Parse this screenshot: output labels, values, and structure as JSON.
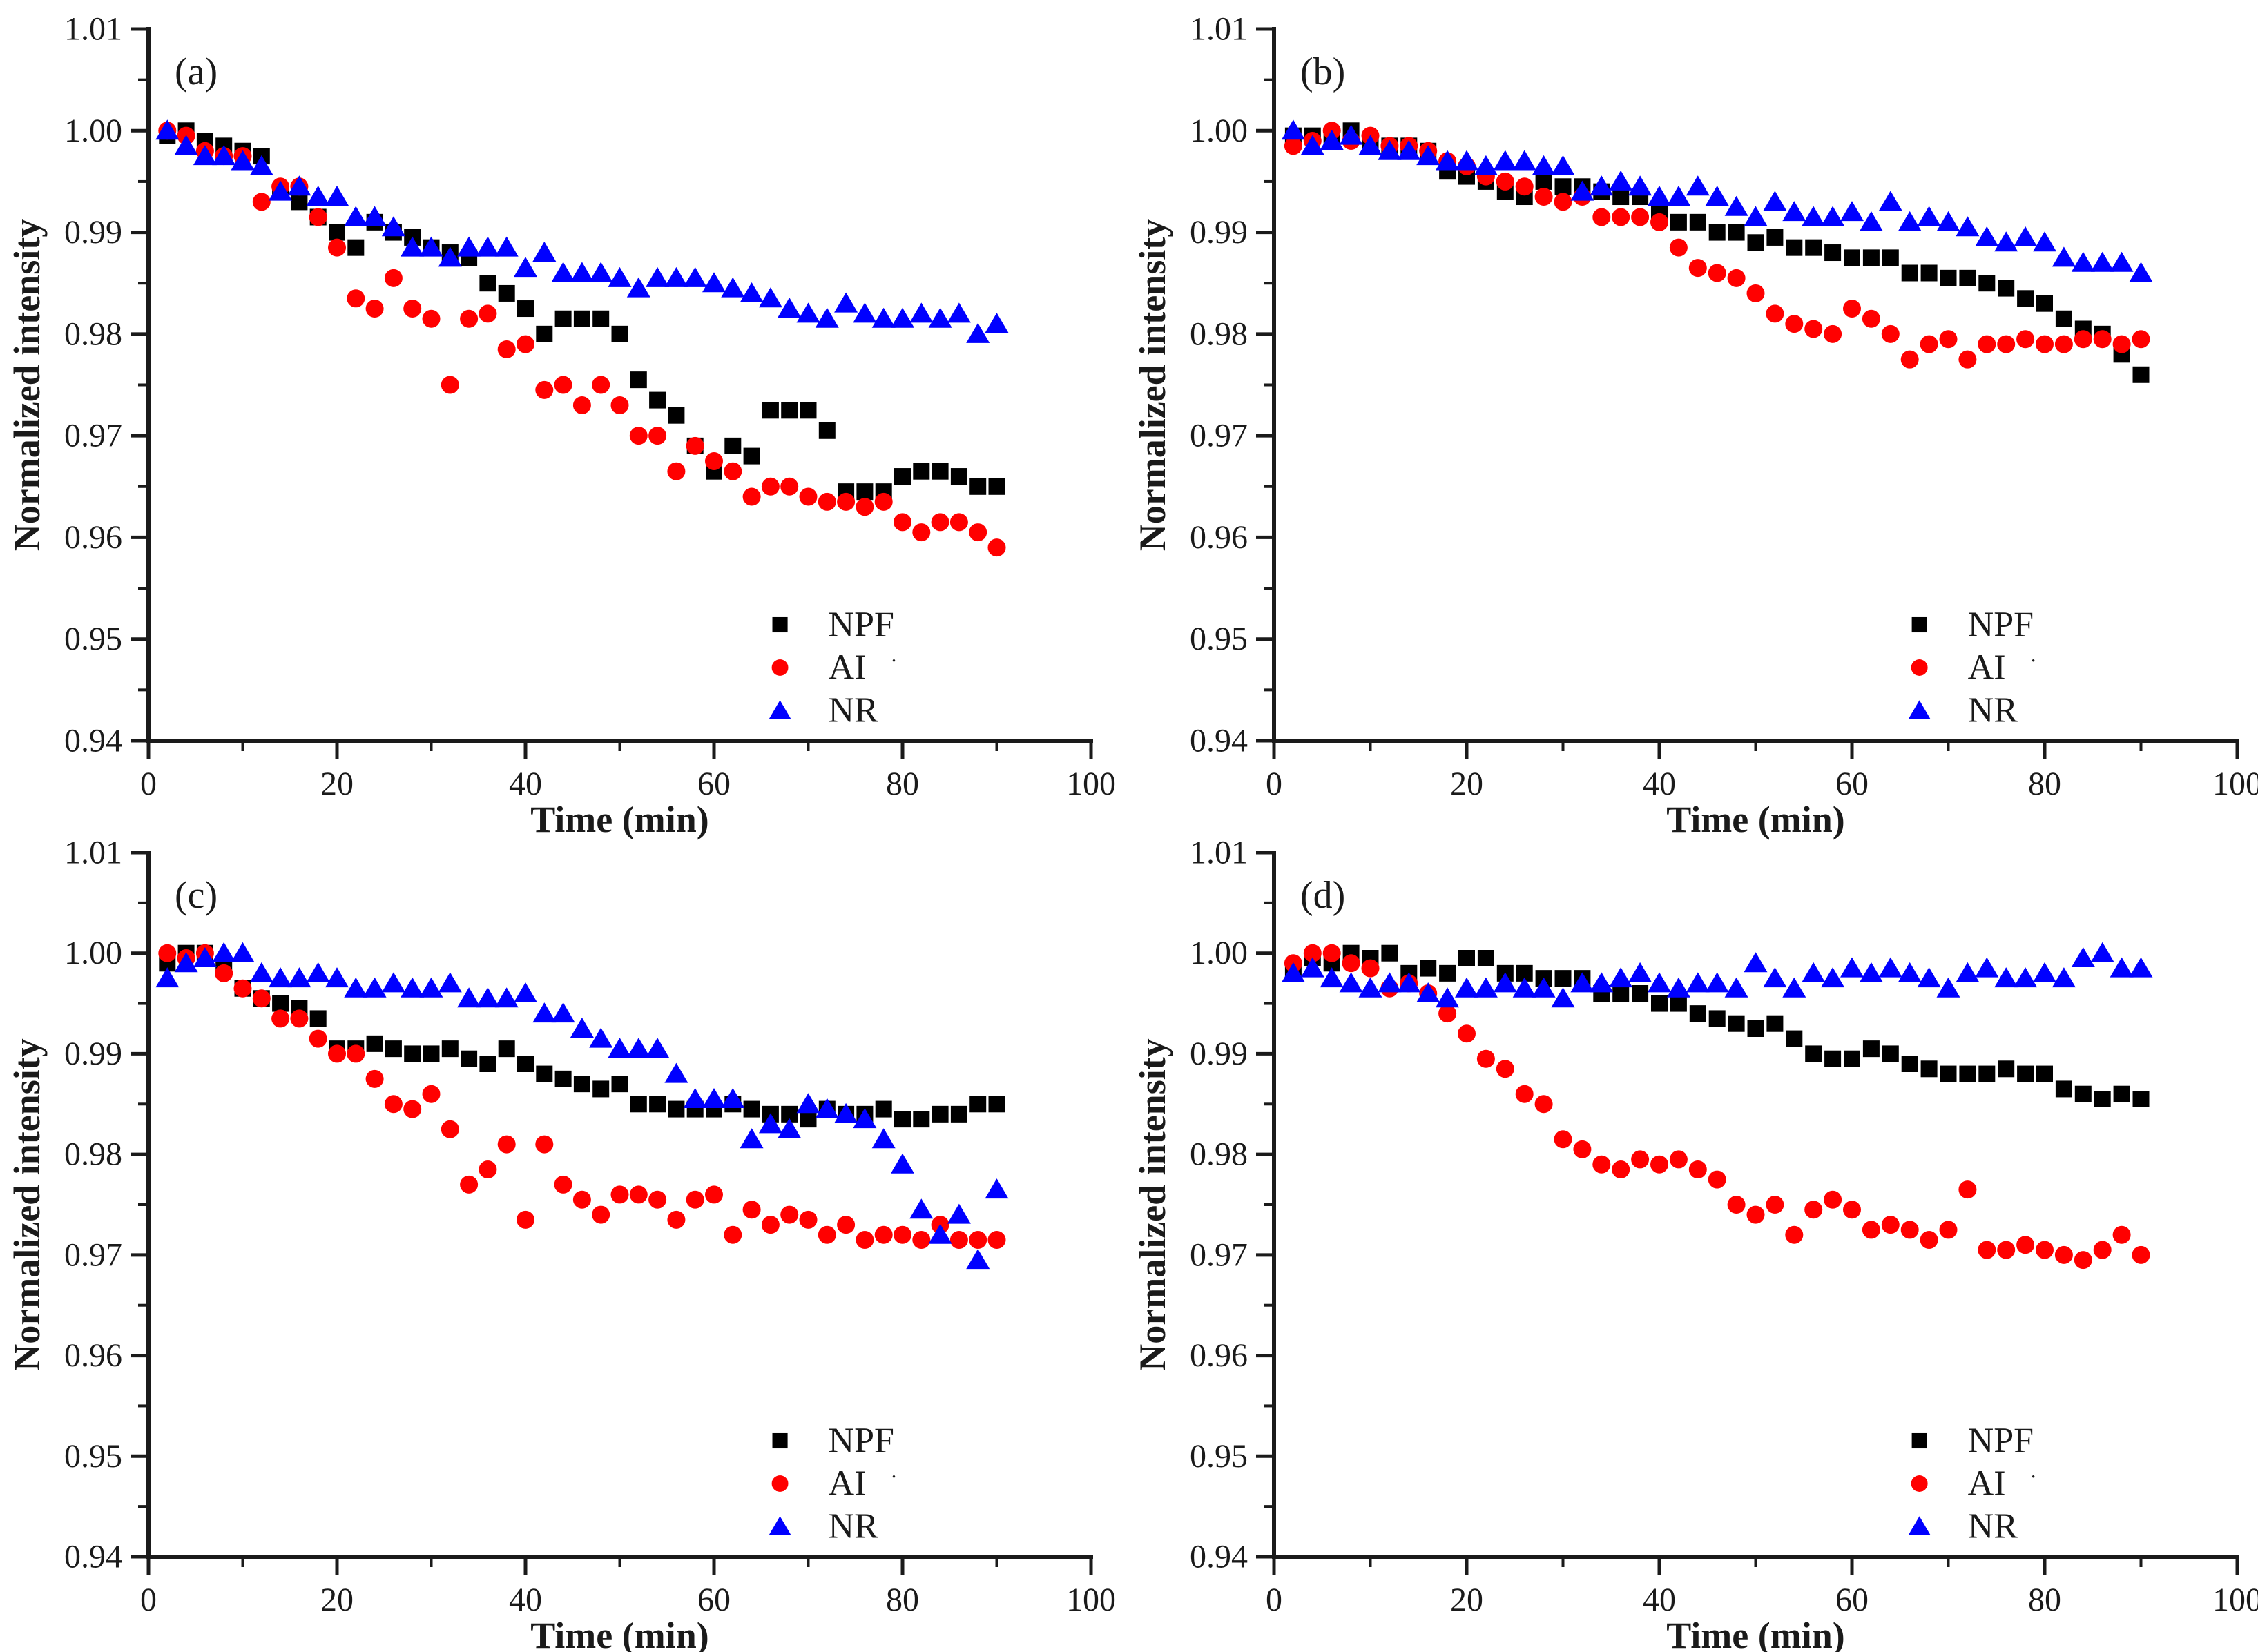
{
  "figure": {
    "background": "#ffffff",
    "axis_color": "#1a1a1a",
    "text_color": "#1a1a1a",
    "xlabel": "Time (min)",
    "ylabel": "Normalized intensity",
    "x_axis": {
      "min": 0,
      "max": 100,
      "major_ticks": [
        0,
        20,
        40,
        60,
        80,
        100
      ],
      "minor_ticks": [
        10,
        30,
        50,
        70,
        90
      ]
    },
    "y_axis": {
      "min": 0.94,
      "max": 1.01,
      "major_ticks": [
        1.01,
        1.0,
        0.99,
        0.98,
        0.97,
        0.96,
        0.95,
        0.94
      ],
      "major_tick_labels": [
        "1.01",
        "1.00",
        "0.99",
        "0.98",
        "0.97",
        "0.96",
        "0.95",
        "0.94"
      ],
      "minor_ticks": [
        1.005,
        0.995,
        0.985,
        0.975,
        0.965,
        0.955,
        0.945
      ]
    },
    "legend": {
      "position": "lower right",
      "items": [
        {
          "label": "NPF",
          "marker": "square",
          "color": "#000000"
        },
        {
          "label": "AI",
          "suffix": "·",
          "marker": "circle",
          "color": "#ff0000"
        },
        {
          "label": "NR",
          "marker": "triangle",
          "color": "#0000ff"
        }
      ]
    }
  },
  "chart_data": [
    {
      "type": "scatter",
      "panel_label": "(a)",
      "xlabel": "Time (min)",
      "ylabel": "Normalized intensity",
      "xlim": [
        0,
        100
      ],
      "ylim": [
        0.94,
        1.01
      ],
      "legend_position": "lower right",
      "x": [
        2,
        4,
        6,
        8,
        10,
        12,
        14,
        16,
        18,
        20,
        22,
        24,
        26,
        28,
        30,
        32,
        34,
        36,
        38,
        40,
        42,
        44,
        46,
        48,
        50,
        52,
        54,
        56,
        58,
        60,
        62,
        64,
        66,
        68,
        70,
        72,
        74,
        76,
        78,
        80,
        82,
        84,
        86,
        88,
        90
      ],
      "series": [
        {
          "name": "NPF",
          "marker": "square",
          "color": "#000000",
          "values": [
            0.9995,
            1.0,
            0.999,
            0.9985,
            0.998,
            0.9975,
            0.994,
            0.993,
            0.9915,
            0.99,
            0.9885,
            0.991,
            0.99,
            0.9895,
            0.9885,
            0.988,
            0.9875,
            0.985,
            0.984,
            0.9825,
            0.98,
            0.9815,
            0.9815,
            0.9815,
            0.98,
            0.9755,
            0.9735,
            0.972,
            0.969,
            0.9665,
            0.969,
            0.968,
            0.9725,
            0.9725,
            0.9725,
            0.9705,
            0.9645,
            0.9645,
            0.9645,
            0.966,
            0.9665,
            0.9665,
            0.966,
            0.965,
            0.965
          ]
        },
        {
          "name": "AI",
          "marker": "circle",
          "color": "#ff0000",
          "values": [
            1.0,
            0.9995,
            0.998,
            0.9975,
            0.9975,
            0.993,
            0.9945,
            0.9945,
            0.9915,
            0.9885,
            0.9835,
            0.9825,
            0.9855,
            0.9825,
            0.9815,
            0.975,
            0.9815,
            0.982,
            0.9785,
            0.979,
            0.9745,
            0.975,
            0.973,
            0.975,
            0.973,
            0.97,
            0.97,
            0.9665,
            0.969,
            0.9675,
            0.9665,
            0.964,
            0.965,
            0.965,
            0.964,
            0.9635,
            0.9635,
            0.963,
            0.9635,
            0.9615,
            0.9605,
            0.9615,
            0.9615,
            0.9605,
            0.959
          ]
        },
        {
          "name": "NR",
          "marker": "triangle",
          "color": "#0000ff",
          "values": [
            1.0,
            0.9985,
            0.9975,
            0.9975,
            0.997,
            0.9965,
            0.994,
            0.9945,
            0.9935,
            0.9935,
            0.9915,
            0.9915,
            0.9905,
            0.9885,
            0.9885,
            0.9875,
            0.9885,
            0.9885,
            0.9885,
            0.9865,
            0.988,
            0.986,
            0.986,
            0.986,
            0.9855,
            0.9845,
            0.9855,
            0.9855,
            0.9855,
            0.985,
            0.9845,
            0.984,
            0.9835,
            0.9825,
            0.982,
            0.9815,
            0.983,
            0.982,
            0.9815,
            0.9815,
            0.982,
            0.9815,
            0.982,
            0.98,
            0.981
          ]
        }
      ]
    },
    {
      "type": "scatter",
      "panel_label": "(b)",
      "xlabel": "Time (min)",
      "ylabel": "Normalized intensity",
      "xlim": [
        0,
        100
      ],
      "ylim": [
        0.94,
        1.01
      ],
      "legend_position": "lower right",
      "x": [
        2,
        4,
        6,
        8,
        10,
        12,
        14,
        16,
        18,
        20,
        22,
        24,
        26,
        28,
        30,
        32,
        34,
        36,
        38,
        40,
        42,
        44,
        46,
        48,
        50,
        52,
        54,
        56,
        58,
        60,
        62,
        64,
        66,
        68,
        70,
        72,
        74,
        76,
        78,
        80,
        82,
        84,
        86,
        88,
        90
      ],
      "series": [
        {
          "name": "NPF",
          "marker": "square",
          "color": "#000000",
          "values": [
            0.9995,
            0.9995,
            0.9995,
            1.0,
            0.999,
            0.9985,
            0.9985,
            0.998,
            0.996,
            0.9955,
            0.995,
            0.994,
            0.9935,
            0.995,
            0.9945,
            0.9945,
            0.994,
            0.9935,
            0.9935,
            0.992,
            0.991,
            0.991,
            0.99,
            0.99,
            0.989,
            0.9895,
            0.9885,
            0.9885,
            0.988,
            0.9875,
            0.9875,
            0.9875,
            0.986,
            0.986,
            0.9855,
            0.9855,
            0.985,
            0.9845,
            0.9835,
            0.983,
            0.9815,
            0.9805,
            0.98,
            0.978,
            0.976
          ]
        },
        {
          "name": "AI",
          "marker": "circle",
          "color": "#ff0000",
          "values": [
            0.9985,
            0.999,
            1.0,
            0.999,
            0.9995,
            0.9985,
            0.9985,
            0.998,
            0.997,
            0.9965,
            0.9955,
            0.995,
            0.9945,
            0.9935,
            0.993,
            0.9935,
            0.9915,
            0.9915,
            0.9915,
            0.991,
            0.9885,
            0.9865,
            0.986,
            0.9855,
            0.984,
            0.982,
            0.981,
            0.9805,
            0.98,
            0.9825,
            0.9815,
            0.98,
            0.9775,
            0.979,
            0.9795,
            0.9775,
            0.979,
            0.979,
            0.9795,
            0.979,
            0.979,
            0.9795,
            0.9795,
            0.979,
            0.9795
          ]
        },
        {
          "name": "NR",
          "marker": "triangle",
          "color": "#0000ff",
          "values": [
            1.0,
            0.9985,
            0.999,
            0.9995,
            0.9985,
            0.998,
            0.998,
            0.9975,
            0.997,
            0.997,
            0.9965,
            0.997,
            0.997,
            0.9965,
            0.9965,
            0.994,
            0.9945,
            0.995,
            0.9945,
            0.9935,
            0.9935,
            0.9945,
            0.9935,
            0.9925,
            0.9915,
            0.993,
            0.992,
            0.9915,
            0.9915,
            0.992,
            0.991,
            0.993,
            0.991,
            0.9915,
            0.991,
            0.9905,
            0.9895,
            0.989,
            0.9895,
            0.989,
            0.9875,
            0.987,
            0.987,
            0.987,
            0.986
          ]
        }
      ]
    },
    {
      "type": "scatter",
      "panel_label": "(c)",
      "xlabel": "Time (min)",
      "ylabel": "Normalized intensity",
      "xlim": [
        0,
        100
      ],
      "ylim": [
        0.94,
        1.01
      ],
      "legend_position": "lower right",
      "x": [
        2,
        4,
        6,
        8,
        10,
        12,
        14,
        16,
        18,
        20,
        22,
        24,
        26,
        28,
        30,
        32,
        34,
        36,
        38,
        40,
        42,
        44,
        46,
        48,
        50,
        52,
        54,
        56,
        58,
        60,
        62,
        64,
        66,
        68,
        70,
        72,
        74,
        76,
        78,
        80,
        82,
        84,
        86,
        88,
        90
      ],
      "series": [
        {
          "name": "NPF",
          "marker": "square",
          "color": "#000000",
          "values": [
            0.999,
            1.0,
            1.0,
            0.9985,
            0.9965,
            0.9955,
            0.995,
            0.9945,
            0.9935,
            0.9905,
            0.9905,
            0.991,
            0.9905,
            0.99,
            0.99,
            0.9905,
            0.9895,
            0.989,
            0.9905,
            0.989,
            0.988,
            0.9875,
            0.987,
            0.9865,
            0.987,
            0.985,
            0.985,
            0.9845,
            0.9845,
            0.9845,
            0.985,
            0.9845,
            0.984,
            0.984,
            0.9835,
            0.9845,
            0.984,
            0.984,
            0.9845,
            0.9835,
            0.9835,
            0.984,
            0.984,
            0.985,
            0.985
          ]
        },
        {
          "name": "AI",
          "marker": "circle",
          "color": "#ff0000",
          "values": [
            1.0,
            0.9995,
            1.0,
            0.998,
            0.9965,
            0.9955,
            0.9935,
            0.9935,
            0.9915,
            0.99,
            0.99,
            0.9875,
            0.985,
            0.9845,
            0.986,
            0.9825,
            0.977,
            0.9785,
            0.981,
            0.9735,
            0.981,
            0.977,
            0.9755,
            0.974,
            0.976,
            0.976,
            0.9755,
            0.9735,
            0.9755,
            0.976,
            0.972,
            0.9745,
            0.973,
            0.974,
            0.9735,
            0.972,
            0.973,
            0.9715,
            0.972,
            0.972,
            0.9715,
            0.973,
            0.9715,
            0.9715,
            0.9715
          ]
        },
        {
          "name": "NR",
          "marker": "triangle",
          "color": "#0000ff",
          "values": [
            0.9975,
            0.999,
            0.9995,
            1.0,
            1.0,
            0.998,
            0.9975,
            0.9975,
            0.998,
            0.9975,
            0.9965,
            0.9965,
            0.997,
            0.9965,
            0.9965,
            0.997,
            0.9955,
            0.9955,
            0.9955,
            0.996,
            0.994,
            0.994,
            0.9925,
            0.9915,
            0.9905,
            0.9905,
            0.9905,
            0.988,
            0.9855,
            0.9855,
            0.9855,
            0.9815,
            0.983,
            0.9825,
            0.985,
            0.9845,
            0.984,
            0.9835,
            0.9815,
            0.979,
            0.9745,
            0.972,
            0.974,
            0.9695,
            0.9765
          ]
        }
      ]
    },
    {
      "type": "scatter",
      "panel_label": "(d)",
      "xlabel": "Time (min)",
      "ylabel": "Normalized intensity",
      "xlim": [
        0,
        100
      ],
      "ylim": [
        0.94,
        1.01
      ],
      "legend_position": "lower right",
      "x": [
        2,
        4,
        6,
        8,
        10,
        12,
        14,
        16,
        18,
        20,
        22,
        24,
        26,
        28,
        30,
        32,
        34,
        36,
        38,
        40,
        42,
        44,
        46,
        48,
        50,
        52,
        54,
        56,
        58,
        60,
        62,
        64,
        66,
        68,
        70,
        72,
        74,
        76,
        78,
        80,
        82,
        84,
        86,
        88,
        90
      ],
      "series": [
        {
          "name": "NPF",
          "marker": "square",
          "color": "#000000",
          "values": [
            0.9985,
            0.9995,
            0.999,
            1.0,
            0.9995,
            1.0,
            0.998,
            0.9985,
            0.998,
            0.9995,
            0.9995,
            0.998,
            0.998,
            0.9975,
            0.9975,
            0.9975,
            0.996,
            0.996,
            0.996,
            0.995,
            0.995,
            0.994,
            0.9935,
            0.993,
            0.9925,
            0.993,
            0.9915,
            0.99,
            0.9895,
            0.9895,
            0.9905,
            0.99,
            0.989,
            0.9885,
            0.988,
            0.988,
            0.988,
            0.9885,
            0.988,
            0.988,
            0.9865,
            0.986,
            0.9855,
            0.986,
            0.9855
          ]
        },
        {
          "name": "AI",
          "marker": "circle",
          "color": "#ff0000",
          "values": [
            0.999,
            1.0,
            1.0,
            0.999,
            0.9985,
            0.9965,
            0.997,
            0.996,
            0.994,
            0.992,
            0.9895,
            0.9885,
            0.986,
            0.985,
            0.9815,
            0.9805,
            0.979,
            0.9785,
            0.9795,
            0.979,
            0.9795,
            0.9785,
            0.9775,
            0.975,
            0.974,
            0.975,
            0.972,
            0.9745,
            0.9755,
            0.9745,
            0.9725,
            0.973,
            0.9725,
            0.9715,
            0.9725,
            0.9765,
            0.9705,
            0.9705,
            0.971,
            0.9705,
            0.97,
            0.9695,
            0.9705,
            0.972,
            0.97
          ]
        },
        {
          "name": "NR",
          "marker": "triangle",
          "color": "#0000ff",
          "values": [
            0.998,
            0.9985,
            0.9975,
            0.997,
            0.9965,
            0.997,
            0.997,
            0.996,
            0.9955,
            0.9965,
            0.9965,
            0.997,
            0.9965,
            0.9965,
            0.9955,
            0.997,
            0.997,
            0.9975,
            0.998,
            0.997,
            0.9965,
            0.997,
            0.997,
            0.9965,
            0.999,
            0.9975,
            0.9965,
            0.998,
            0.9975,
            0.9985,
            0.998,
            0.9985,
            0.998,
            0.9975,
            0.9965,
            0.998,
            0.9985,
            0.9975,
            0.9975,
            0.998,
            0.9975,
            0.9995,
            1.0,
            0.9985,
            0.9985
          ]
        }
      ]
    }
  ]
}
